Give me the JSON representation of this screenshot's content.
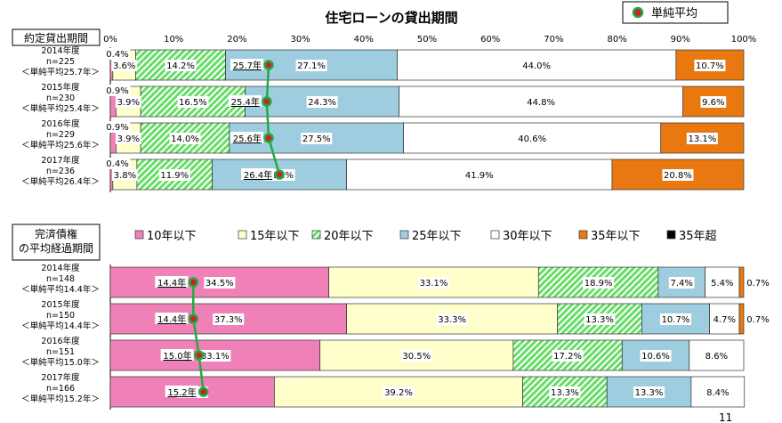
{
  "title": "住宅ローンの貸出期間",
  "legend_top": "単純平均",
  "page_number": "11",
  "colors": {
    "pink": "#f080b8",
    "cream": "#ffffcc",
    "green": "#66dd66",
    "blue": "#9ecde0",
    "white": "#ffffff",
    "orange": "#e8780f",
    "black": "#000000",
    "line": "#22aa44",
    "marker": "#cc2222"
  },
  "chart_data": [
    {
      "type": "bar",
      "orientation": "horizontal",
      "stacked": "percent",
      "section_label": "約定貸出期間",
      "xlim": [
        0,
        100
      ],
      "x_ticks": [
        "0%",
        "10%",
        "20%",
        "30%",
        "40%",
        "50%",
        "60%",
        "70%",
        "80%",
        "90%",
        "100%"
      ],
      "categories": [
        [
          "2014年度",
          "n=225",
          "＜単純平均25.7年＞"
        ],
        [
          "2015年度",
          "n=230",
          "＜単純平均25.4年＞"
        ],
        [
          "2016年度",
          "n=229",
          "＜単純平均25.6年＞"
        ],
        [
          "2017年度",
          "n=236",
          "＜単純平均26.4年＞"
        ]
      ],
      "series": [
        {
          "name": "10年以下",
          "color": "pink",
          "values": [
            0.4,
            0.9,
            0.9,
            0.4
          ],
          "labels": [
            "0.4%",
            "0.9%",
            "0.9%",
            "0.4%"
          ]
        },
        {
          "name": "15年以下",
          "color": "cream",
          "values": [
            3.6,
            3.9,
            3.9,
            3.8
          ],
          "labels": [
            "3.6%",
            "3.9%",
            "3.9%",
            "3.8%"
          ]
        },
        {
          "name": "20年以下",
          "color": "green",
          "values": [
            14.2,
            16.5,
            14.0,
            11.9
          ],
          "labels": [
            "14.2%",
            "16.5%",
            "14.0%",
            "11.9%"
          ]
        },
        {
          "name": "25年以下",
          "color": "blue",
          "values": [
            27.1,
            24.3,
            27.5,
            21.2
          ],
          "labels": [
            "27.1%",
            "24.3%",
            "27.5%",
            "21.2%"
          ]
        },
        {
          "name": "30年以下",
          "color": "white",
          "values": [
            44.0,
            44.8,
            40.6,
            41.9
          ],
          "labels": [
            "44.0%",
            "44.8%",
            "40.6%",
            "41.9%"
          ]
        },
        {
          "name": "35年以下",
          "color": "orange",
          "values": [
            10.7,
            9.6,
            13.1,
            20.8
          ],
          "labels": [
            "10.7%",
            "9.6%",
            "13.1%",
            "20.8%"
          ]
        }
      ],
      "average_line": {
        "values": [
          25.7,
          25.4,
          25.6,
          26.4
        ],
        "positions_pct": [
          25.0,
          24.7,
          25.0,
          26.7
        ],
        "labels": [
          "25.7年",
          "25.4年",
          "25.6年",
          "26.4年"
        ]
      }
    },
    {
      "type": "bar",
      "orientation": "horizontal",
      "stacked": "percent",
      "section_label": "完済債権の平均経過期間",
      "xlim": [
        0,
        100
      ],
      "legend": [
        "10年以下",
        "15年以下",
        "20年以下",
        "25年以下",
        "30年以下",
        "35年以下",
        "35年超"
      ],
      "categories": [
        [
          "2014年度",
          "n=148",
          "＜単純平均14.4年＞"
        ],
        [
          "2015年度",
          "n=150",
          "＜単純平均14.4年＞"
        ],
        [
          "2016年度",
          "n=151",
          "＜単純平均15.0年＞"
        ],
        [
          "2017年度",
          "n=166",
          "＜単純平均15.2年＞"
        ]
      ],
      "series": [
        {
          "name": "10年以下",
          "color": "pink",
          "values": [
            34.5,
            37.3,
            33.1,
            25.9
          ],
          "labels": [
            "34.5%",
            "37.3%",
            "33.1%",
            "25.9%"
          ]
        },
        {
          "name": "15年以下",
          "color": "cream",
          "values": [
            33.1,
            33.3,
            30.5,
            39.2
          ],
          "labels": [
            "33.1%",
            "33.3%",
            "30.5%",
            "39.2%"
          ]
        },
        {
          "name": "20年以下",
          "color": "green",
          "values": [
            18.9,
            13.3,
            17.2,
            13.3
          ],
          "labels": [
            "18.9%",
            "13.3%",
            "17.2%",
            "13.3%"
          ]
        },
        {
          "name": "25年以下",
          "color": "blue",
          "values": [
            7.4,
            10.7,
            10.6,
            13.3
          ],
          "labels": [
            "7.4%",
            "10.7%",
            "10.6%",
            "13.3%"
          ]
        },
        {
          "name": "30年以下",
          "color": "white",
          "values": [
            5.4,
            4.7,
            8.6,
            8.4
          ],
          "labels": [
            "5.4%",
            "4.7%",
            "8.6%",
            "8.4%"
          ]
        },
        {
          "name": "35年以下",
          "color": "orange",
          "values": [
            0.7,
            0.7,
            0,
            0
          ],
          "labels": [
            "0.7%",
            "0.7%",
            "",
            ""
          ]
        },
        {
          "name": "35年超",
          "color": "black",
          "values": [
            0,
            0,
            0,
            0
          ],
          "labels": [
            "",
            "",
            "",
            ""
          ]
        }
      ],
      "average_line": {
        "values": [
          14.4,
          14.4,
          15.0,
          15.2
        ],
        "positions_pct": [
          13.1,
          13.1,
          14.0,
          14.7
        ],
        "labels": [
          "14.4年",
          "14.4年",
          "15.0年",
          "15.2年"
        ]
      }
    }
  ]
}
